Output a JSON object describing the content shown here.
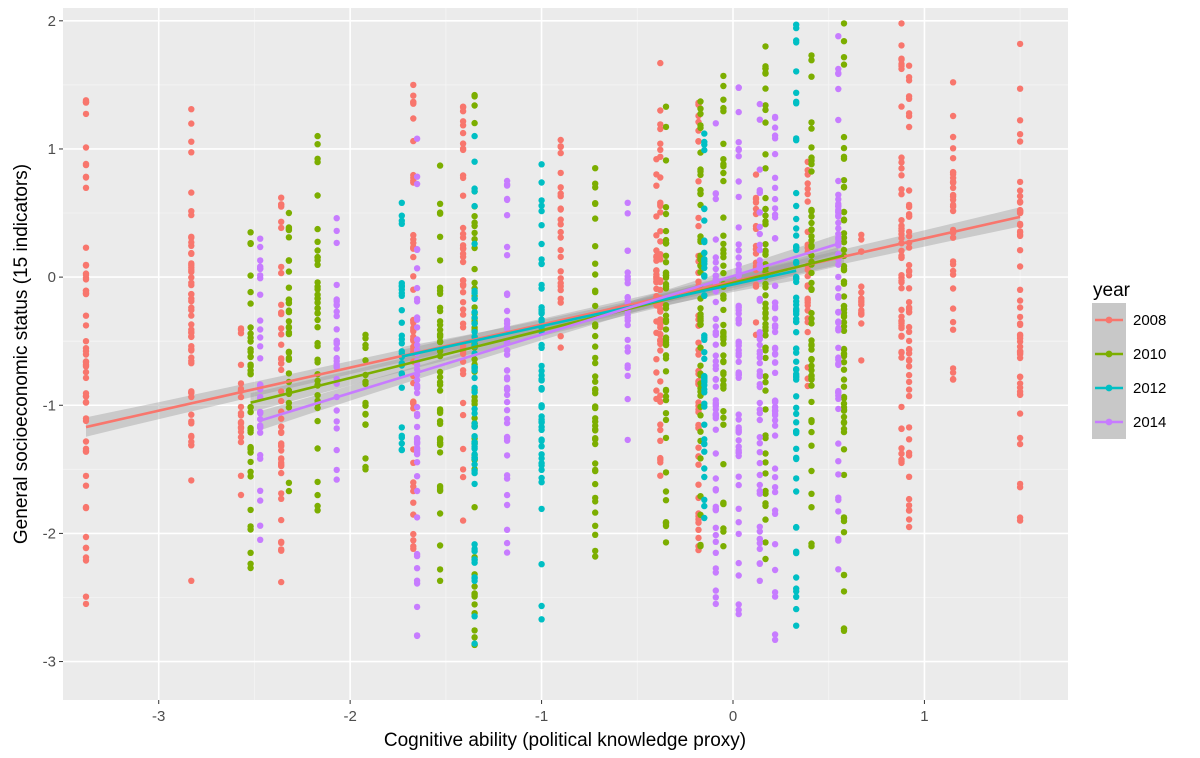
{
  "chart_data": {
    "type": "scatter",
    "title": "",
    "xlabel": "Cognitive ability (political knowledge proxy)",
    "ylabel": "General socioeconomic status (15 indicators)",
    "xlim": [
      -3.5,
      1.75
    ],
    "ylim": [
      -3.3,
      2.1
    ],
    "x_ticks": [
      -3,
      -2,
      -1,
      0,
      1
    ],
    "x_tick_labels": [
      "-3",
      "-2",
      "-1",
      "0",
      "1"
    ],
    "y_ticks": [
      -3,
      -2,
      -1,
      0,
      1,
      2
    ],
    "y_tick_labels": [
      "-3",
      "-2",
      "-1",
      "0",
      "1",
      "2"
    ],
    "grid": true,
    "legend_title": "year",
    "legend_position": "right",
    "series": [
      {
        "name": "2008",
        "color": "#F8766D",
        "x_levels": [
          -3.38,
          -2.83,
          -2.57,
          -2.36,
          -1.67,
          -1.41,
          -0.9,
          -0.4,
          -0.38,
          -0.18,
          0.12,
          0.39,
          0.67,
          0.88,
          0.92,
          1.15,
          1.5
        ],
        "y_range_at_levels": [
          [
            -2.55,
            1.38
          ],
          [
            -2.37,
            1.31
          ],
          [
            -1.7,
            -0.4
          ],
          [
            -2.38,
            0.62
          ],
          [
            -2.12,
            1.5
          ],
          [
            -1.9,
            1.33
          ],
          [
            -0.55,
            1.07
          ],
          [
            -0.95,
            0.92
          ],
          [
            -1.55,
            1.67
          ],
          [
            -2.13,
            1.36
          ],
          [
            -0.45,
            0.8
          ],
          [
            -0.85,
            0.9
          ],
          [
            -0.65,
            0.33
          ],
          [
            -1.45,
            1.98
          ],
          [
            -1.95,
            1.65
          ],
          [
            -0.8,
            1.52
          ],
          [
            -1.9,
            1.82
          ]
        ],
        "fit_line": {
          "x": [
            -3.38,
            1.5
          ],
          "y": [
            -1.17,
            0.47
          ]
        }
      },
      {
        "name": "2010",
        "color": "#7CAE00",
        "x_levels": [
          -2.52,
          -2.32,
          -2.17,
          -1.92,
          -1.53,
          -1.35,
          -0.72,
          -0.35,
          -0.17,
          -0.05,
          0.17,
          0.41,
          0.58
        ],
        "y_range_at_levels": [
          [
            -2.27,
            0.35
          ],
          [
            -1.67,
            0.5
          ],
          [
            -1.82,
            1.1
          ],
          [
            -1.5,
            -0.45
          ],
          [
            -2.37,
            0.87
          ],
          [
            -2.87,
            1.42
          ],
          [
            -2.18,
            0.85
          ],
          [
            -2.07,
            1.33
          ],
          [
            -2.1,
            1.37
          ],
          [
            -2.1,
            1.57
          ],
          [
            -2.2,
            1.8
          ],
          [
            -2.1,
            1.73
          ],
          [
            -2.76,
            1.98
          ]
        ],
        "fit_line": {
          "x": [
            -2.52,
            0.58
          ],
          "y": [
            -0.98,
            0.17
          ]
        }
      },
      {
        "name": "2012",
        "color": "#00BFC4",
        "x_levels": [
          -1.73,
          -1.35,
          -1.0,
          -0.15,
          0.33
        ],
        "y_range_at_levels": [
          [
            -1.35,
            0.58
          ],
          [
            -2.86,
            1.1
          ],
          [
            -2.67,
            0.88
          ],
          [
            -1.88,
            1.12
          ],
          [
            -2.72,
            1.97
          ]
        ],
        "fit_line": {
          "x": [
            -1.73,
            0.33
          ],
          "y": [
            -0.62,
            0.05
          ]
        }
      },
      {
        "name": "2014",
        "color": "#C77CFF",
        "x_levels": [
          -2.47,
          -2.07,
          -1.65,
          -1.18,
          -0.55,
          -0.09,
          0.03,
          0.14,
          0.22,
          0.55
        ],
        "y_range_at_levels": [
          [
            -2.05,
            0.3
          ],
          [
            -1.58,
            0.46
          ],
          [
            -2.8,
            1.08
          ],
          [
            -2.15,
            0.75
          ],
          [
            -1.27,
            0.58
          ],
          [
            -2.55,
            1.2
          ],
          [
            -2.63,
            1.48
          ],
          [
            -2.37,
            1.35
          ],
          [
            -2.83,
            1.25
          ],
          [
            -2.28,
            1.88
          ]
        ],
        "fit_line": {
          "x": [
            -2.47,
            0.55
          ],
          "y": [
            -1.12,
            0.26
          ]
        }
      }
    ]
  }
}
